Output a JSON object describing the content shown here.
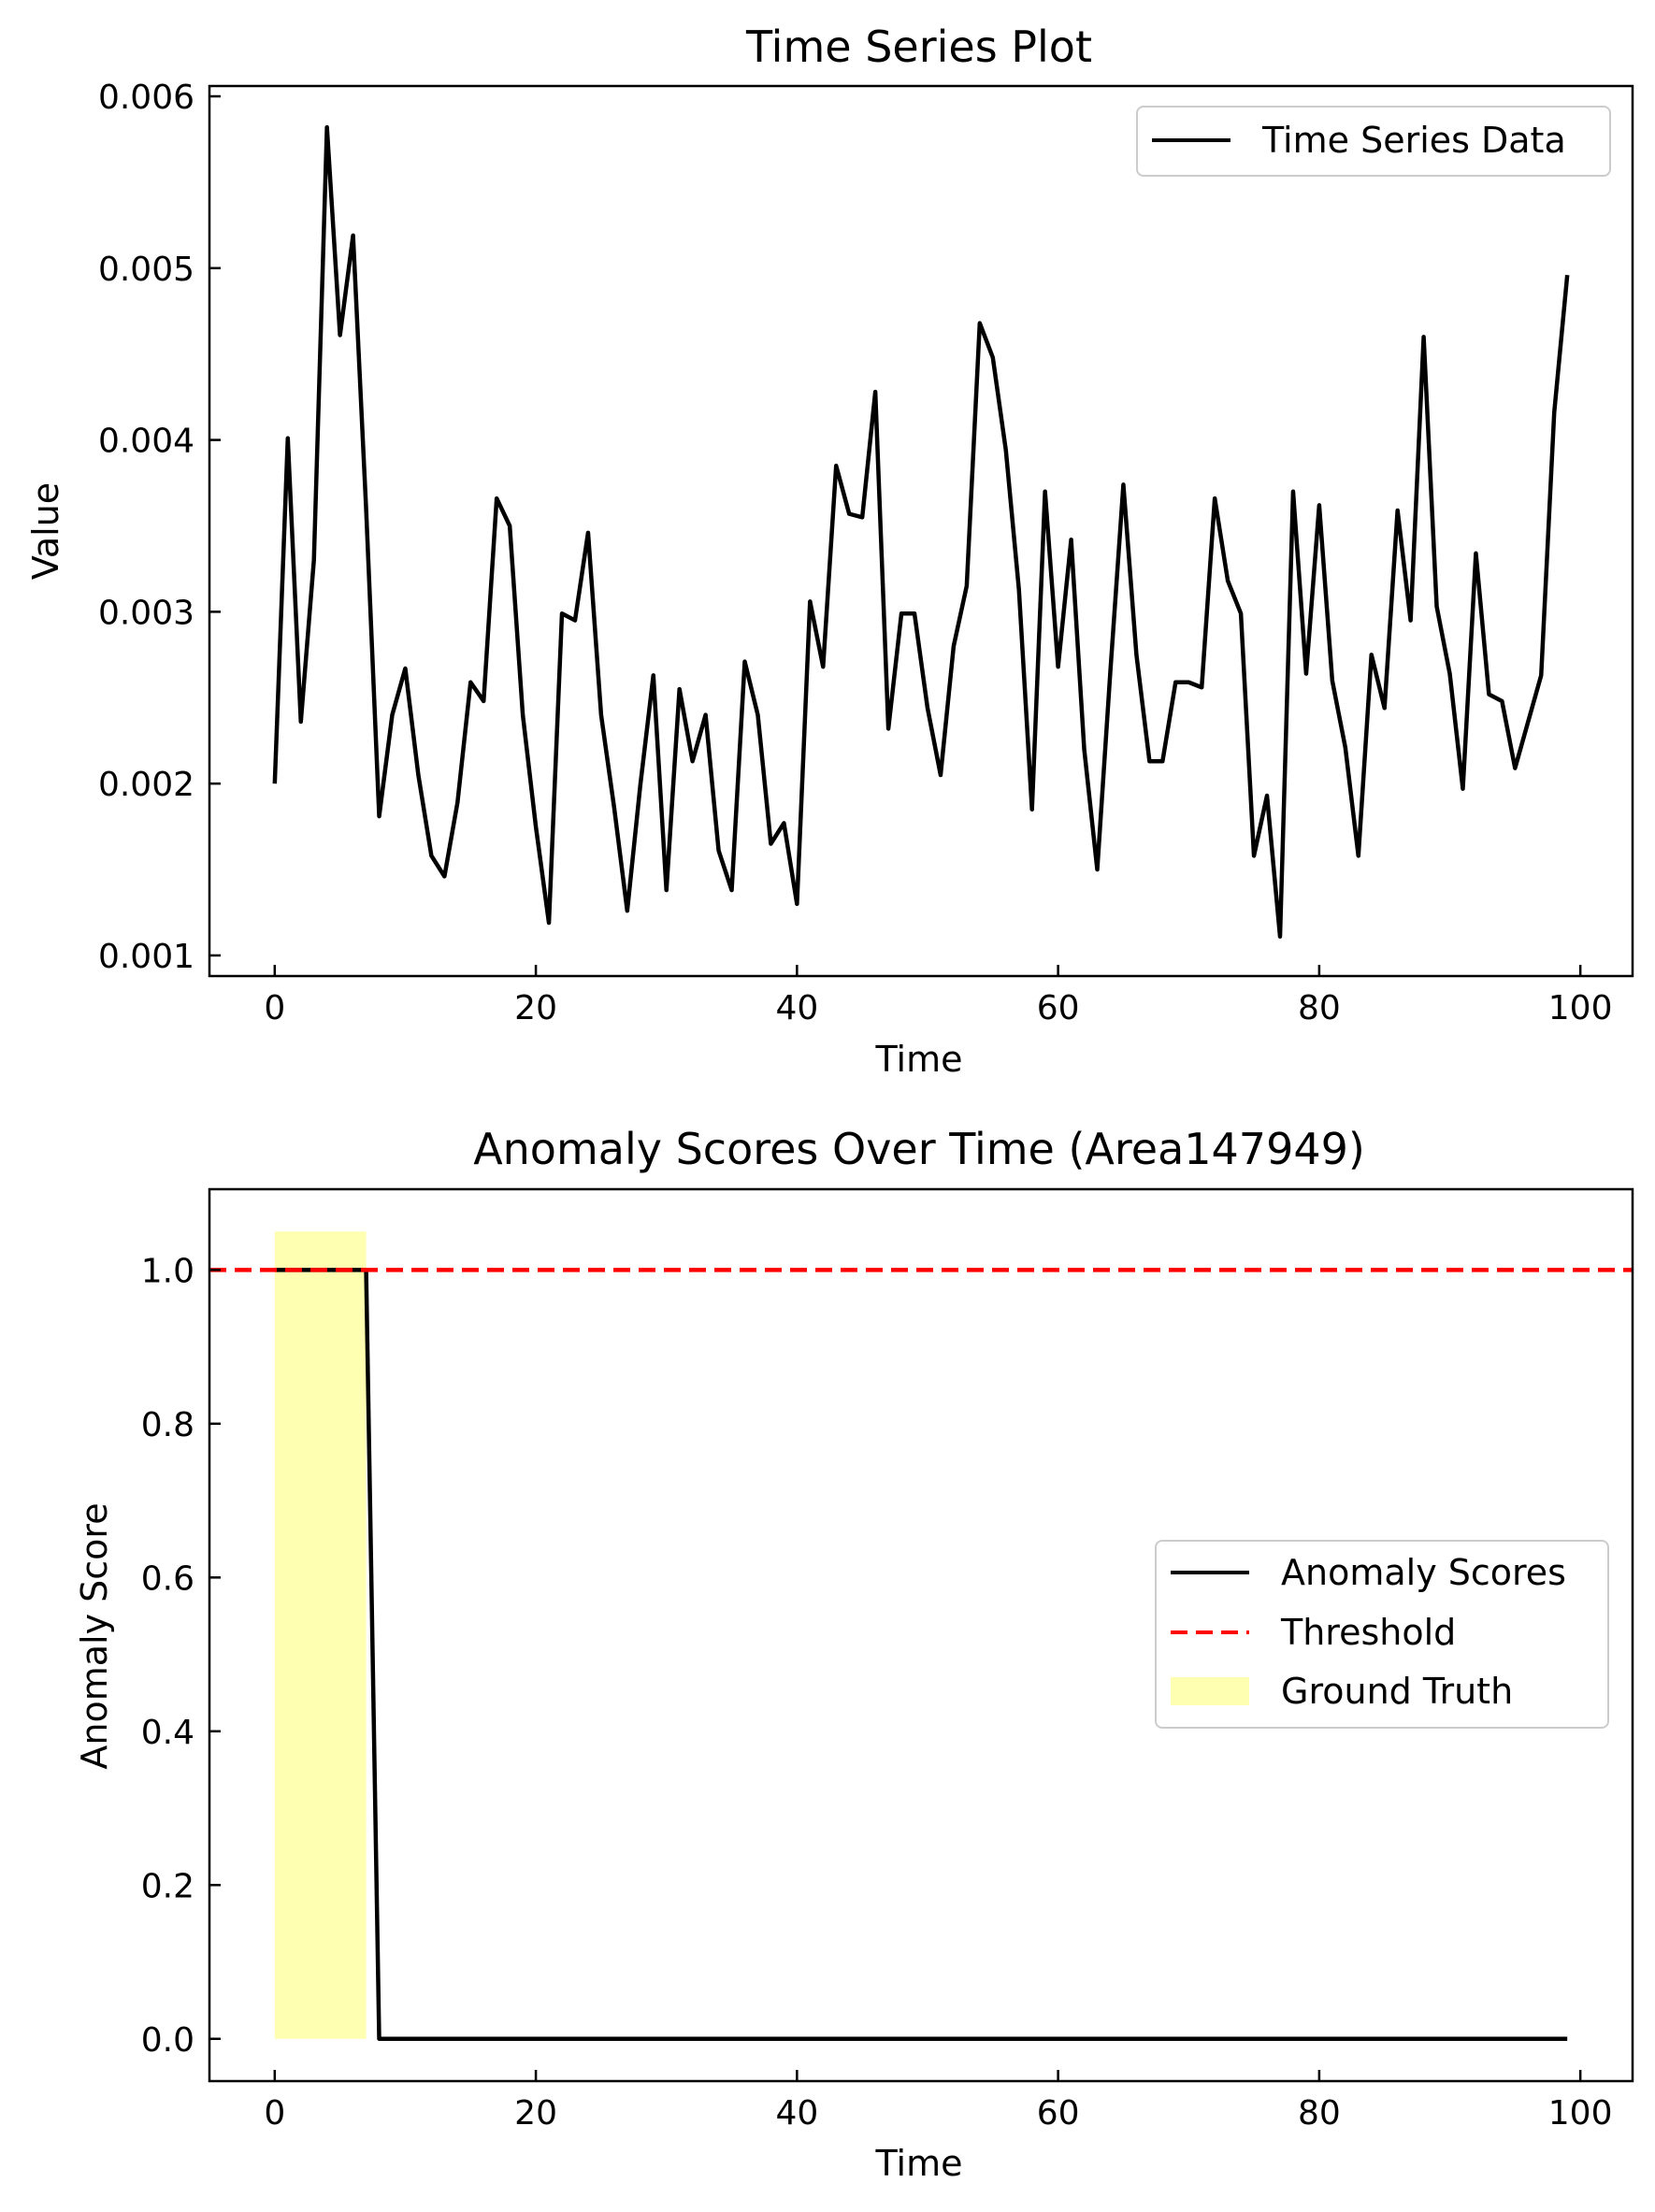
{
  "chart_data": [
    {
      "type": "line",
      "title": "Time Series Plot",
      "xlabel": "Time",
      "ylabel": "Value",
      "xlim": [
        -5,
        104
      ],
      "ylim": [
        0.00088,
        0.00606
      ],
      "xticks": [
        0,
        20,
        40,
        60,
        80,
        100
      ],
      "xtick_labels": [
        "0",
        "20",
        "40",
        "60",
        "80",
        "100"
      ],
      "yticks": [
        0.001,
        0.002,
        0.003,
        0.004,
        0.005,
        0.006
      ],
      "ytick_labels": [
        "0.001",
        "0.002",
        "0.003",
        "0.004",
        "0.005",
        "0.006"
      ],
      "legend_position": "top-right",
      "grid": false,
      "series": [
        {
          "name": "Time Series Data",
          "color": "#000000",
          "x": [
            0,
            1,
            2,
            3,
            4,
            5,
            6,
            7,
            8,
            9,
            10,
            11,
            12,
            13,
            14,
            15,
            16,
            17,
            18,
            19,
            20,
            21,
            22,
            23,
            24,
            25,
            26,
            27,
            28,
            29,
            30,
            31,
            32,
            33,
            34,
            35,
            36,
            37,
            38,
            39,
            40,
            41,
            42,
            43,
            44,
            45,
            46,
            47,
            48,
            49,
            50,
            51,
            52,
            53,
            54,
            55,
            56,
            57,
            58,
            59,
            60,
            61,
            62,
            63,
            64,
            65,
            66,
            67,
            68,
            69,
            70,
            71,
            72,
            73,
            74,
            75,
            76,
            77,
            78,
            79,
            80,
            81,
            82,
            83,
            84,
            85,
            86,
            87,
            88,
            89,
            90,
            91,
            92,
            93,
            94,
            95,
            96,
            97,
            98,
            99
          ],
          "values": [
            0.002,
            0.00401,
            0.00236,
            0.0033,
            0.00582,
            0.00461,
            0.00519,
            0.0036,
            0.00181,
            0.0024,
            0.00267,
            0.00205,
            0.00158,
            0.00146,
            0.00189,
            0.00259,
            0.00248,
            0.00366,
            0.0035,
            0.0024,
            0.00175,
            0.00119,
            0.00299,
            0.00295,
            0.00346,
            0.0024,
            0.00186,
            0.00126,
            0.00199,
            0.00263,
            0.00138,
            0.00255,
            0.00213,
            0.0024,
            0.00161,
            0.00138,
            0.00271,
            0.0024,
            0.00165,
            0.00177,
            0.0013,
            0.00306,
            0.00268,
            0.00385,
            0.00357,
            0.00355,
            0.00428,
            0.00232,
            0.00299,
            0.00299,
            0.00244,
            0.00205,
            0.0028,
            0.00315,
            0.00468,
            0.00448,
            0.00394,
            0.00313,
            0.00185,
            0.0037,
            0.00268,
            0.00342,
            0.0022,
            0.0015,
            0.00265,
            0.00374,
            0.00275,
            0.00213,
            0.00213,
            0.00259,
            0.00259,
            0.00256,
            0.00366,
            0.00318,
            0.00299,
            0.00158,
            0.00193,
            0.00111,
            0.0037,
            0.00264,
            0.00362,
            0.0026,
            0.00221,
            0.00158,
            0.00275,
            0.00244,
            0.00359,
            0.00295,
            0.0046,
            0.00303,
            0.00264,
            0.00197,
            0.00334,
            0.00252,
            0.00248,
            0.00209,
            0.00236,
            0.00263,
            0.00416,
            0.00496
          ]
        }
      ]
    },
    {
      "type": "line",
      "title": "Anomaly Scores Over Time (Area147949)",
      "xlabel": "Time",
      "ylabel": "Anomaly Score",
      "xlim": [
        -5,
        104
      ],
      "ylim": [
        -0.055,
        1.105
      ],
      "xticks": [
        0,
        20,
        40,
        60,
        80,
        100
      ],
      "xtick_labels": [
        "0",
        "20",
        "40",
        "60",
        "80",
        "100"
      ],
      "yticks": [
        0,
        0.2,
        0.4,
        0.6,
        0.8,
        1.0
      ],
      "ytick_labels": [
        "0.0",
        "0.2",
        "0.4",
        "0.6",
        "0.8",
        "1.0"
      ],
      "legend_position": "center-right",
      "grid": false,
      "series": [
        {
          "name": "Anomaly Scores",
          "color": "#000000",
          "x": [
            0,
            1,
            2,
            3,
            4,
            5,
            6,
            7,
            8,
            9,
            10,
            11,
            12,
            13,
            14,
            15,
            16,
            17,
            18,
            19,
            20,
            21,
            22,
            23,
            24,
            25,
            26,
            27,
            28,
            29,
            30,
            31,
            32,
            33,
            34,
            35,
            36,
            37,
            38,
            39,
            40,
            41,
            42,
            43,
            44,
            45,
            46,
            47,
            48,
            49,
            50,
            51,
            52,
            53,
            54,
            55,
            56,
            57,
            58,
            59,
            60,
            61,
            62,
            63,
            64,
            65,
            66,
            67,
            68,
            69,
            70,
            71,
            72,
            73,
            74,
            75,
            76,
            77,
            78,
            79,
            80,
            81,
            82,
            83,
            84,
            85,
            86,
            87,
            88,
            89,
            90,
            91,
            92,
            93,
            94,
            95,
            96,
            97,
            98,
            99
          ],
          "values": [
            1,
            1,
            1,
            1,
            1,
            1,
            1,
            1,
            0,
            0,
            0,
            0,
            0,
            0,
            0,
            0,
            0,
            0,
            0,
            0,
            0,
            0,
            0,
            0,
            0,
            0,
            0,
            0,
            0,
            0,
            0,
            0,
            0,
            0,
            0,
            0,
            0,
            0,
            0,
            0,
            0,
            0,
            0,
            0,
            0,
            0,
            0,
            0,
            0,
            0,
            0,
            0,
            0,
            0,
            0,
            0,
            0,
            0,
            0,
            0,
            0,
            0,
            0,
            0,
            0,
            0,
            0,
            0,
            0,
            0,
            0,
            0,
            0,
            0,
            0,
            0,
            0,
            0,
            0,
            0,
            0,
            0,
            0,
            0,
            0,
            0,
            0,
            0,
            0,
            0,
            0,
            0,
            0,
            0,
            0,
            0,
            0,
            0,
            0,
            0
          ]
        }
      ],
      "threshold": {
        "name": "Threshold",
        "value": 1.0,
        "color": "#ff0000"
      },
      "ground_truth": {
        "name": "Ground Truth",
        "x_start": 0,
        "x_end": 7,
        "y_min": 0,
        "y_max": 1.05,
        "color": "#ffff66"
      }
    }
  ]
}
